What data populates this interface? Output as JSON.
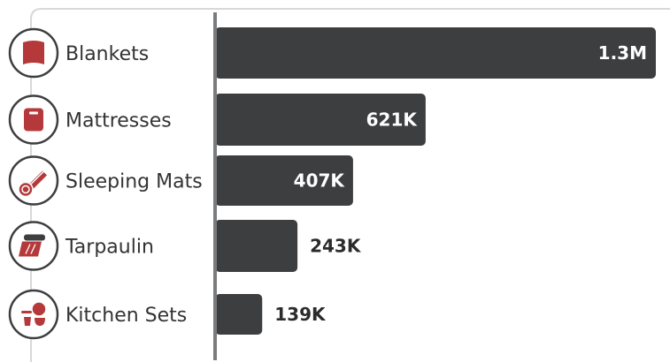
{
  "chart_data": {
    "type": "bar",
    "orientation": "horizontal",
    "title": "",
    "xlabel": "",
    "ylabel": "",
    "categories": [
      "Blankets",
      "Mattresses",
      "Sleeping Mats",
      "Tarpaulin",
      "Kitchen Sets"
    ],
    "values": [
      1300000,
      621000,
      407000,
      243000,
      139000
    ],
    "value_labels": [
      "1.3M",
      "621K",
      "407K",
      "243K",
      "139K"
    ],
    "icons": [
      "blanket-icon",
      "mattress-icon",
      "sleeping-mat-icon",
      "tarpaulin-icon",
      "kitchen-set-icon"
    ],
    "xlim": [
      0,
      1300000
    ],
    "grid": false,
    "legend": "none"
  },
  "colors": {
    "bar": "#3d3e40",
    "icon_fill": "#b5393a",
    "icon_ring": "#3d3e40",
    "axis": "#7a7b7d",
    "frame": "#d8d8d8",
    "label_inside": "#ffffff",
    "label_outside": "#2b2b2b",
    "category_text": "#333333"
  }
}
